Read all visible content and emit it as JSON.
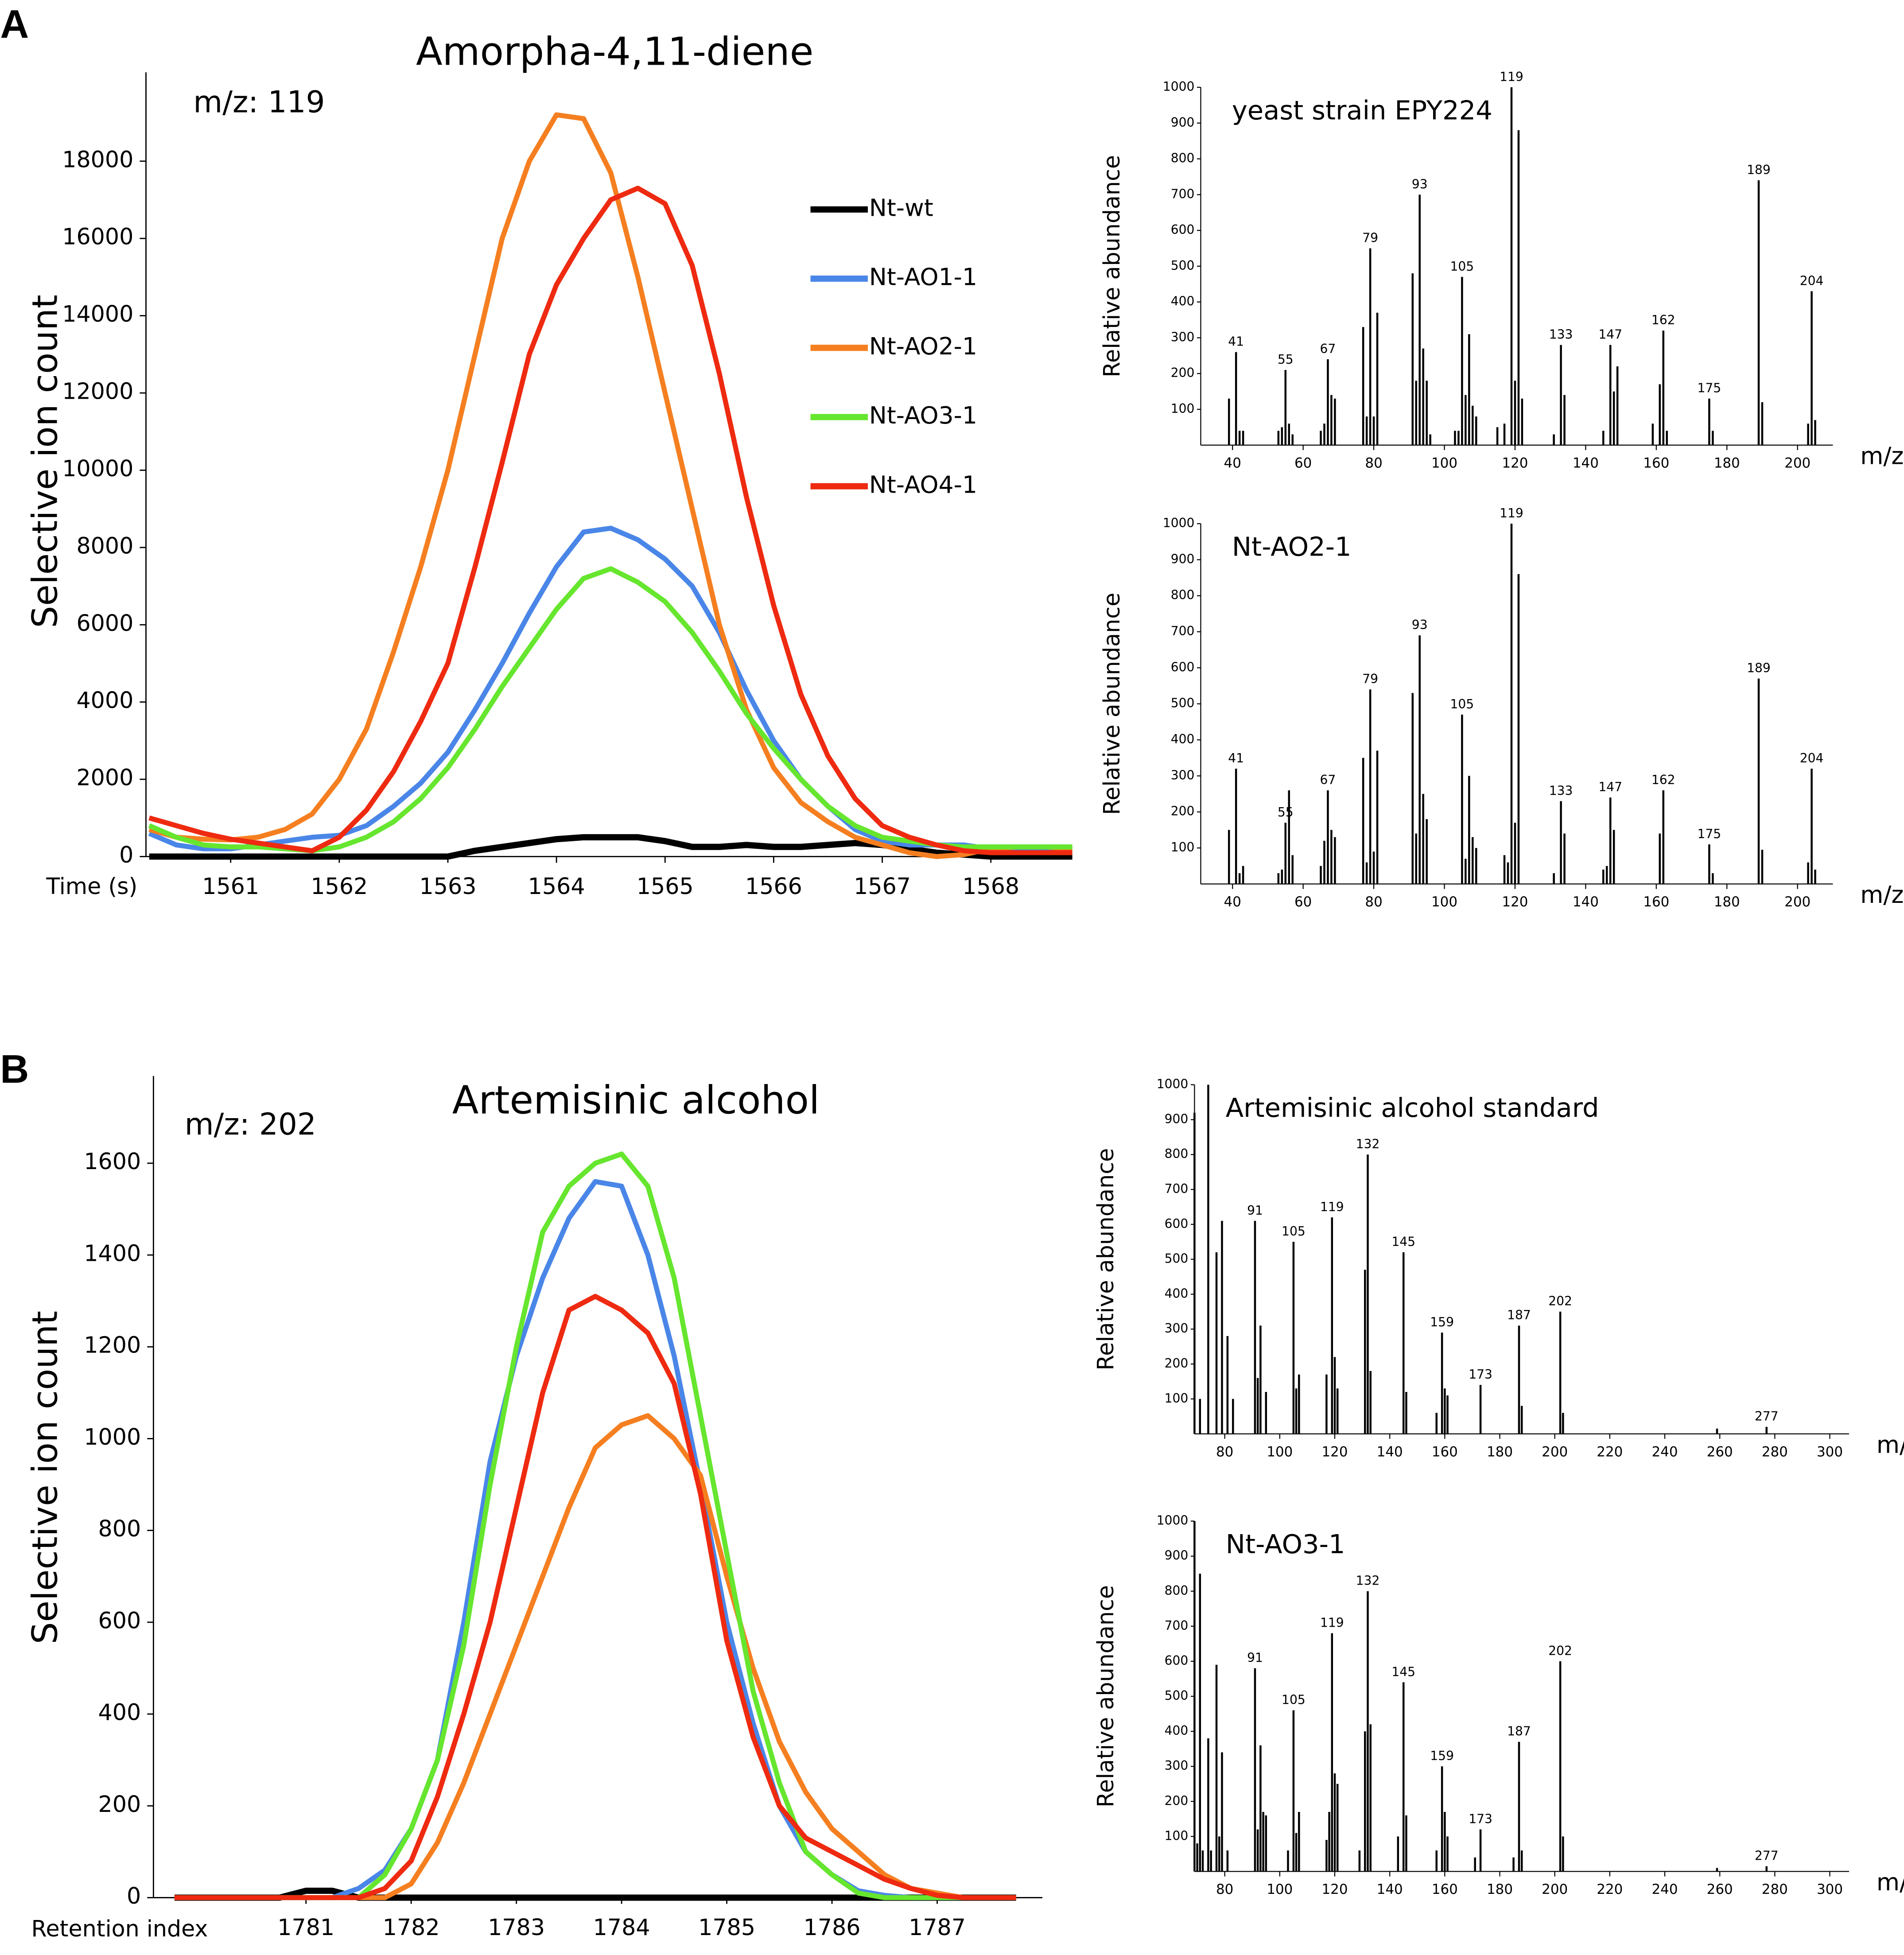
{
  "chart_data": [
    {
      "type": "line",
      "panel": "A",
      "title": "Amorpha-4,11-diene",
      "annotation": "m/z: 119",
      "xlabel": "Time (s)",
      "ylabel": "Selective ion count",
      "x": [
        1560.25,
        1560.5,
        1560.75,
        1561,
        1561.25,
        1561.5,
        1561.75,
        1562,
        1562.25,
        1562.5,
        1562.75,
        1563,
        1563.25,
        1563.5,
        1563.75,
        1564,
        1564.25,
        1564.5,
        1564.75,
        1565,
        1565.25,
        1565.5,
        1565.75,
        1566,
        1566.25,
        1566.5,
        1566.75,
        1567,
        1567.25,
        1567.5,
        1567.75,
        1568,
        1568.25,
        1568.5,
        1568.75
      ],
      "series": [
        {
          "name": "Nt-wt",
          "color": "#000000",
          "values": [
            0,
            0,
            0,
            0,
            0,
            0,
            0,
            0,
            0,
            0,
            0,
            0,
            150,
            250,
            350,
            450,
            500,
            500,
            500,
            400,
            250,
            250,
            300,
            250,
            250,
            300,
            350,
            300,
            200,
            100,
            50,
            0,
            0,
            0,
            0
          ]
        },
        {
          "name": "Nt-AO1-1",
          "color": "#4a86e8",
          "values": [
            600,
            300,
            200,
            200,
            300,
            400,
            500,
            550,
            800,
            1300,
            1900,
            2700,
            3800,
            5000,
            6300,
            7500,
            8400,
            8500,
            8200,
            7700,
            7000,
            5800,
            4300,
            3000,
            2000,
            1300,
            700,
            400,
            300,
            300,
            300,
            200,
            200,
            150,
            150
          ]
        },
        {
          "name": "Nt-AO2-1",
          "color": "#f57f20",
          "values": [
            700,
            500,
            450,
            430,
            500,
            700,
            1100,
            2000,
            3300,
            5300,
            7500,
            10000,
            13000,
            16000,
            18000,
            19200,
            19100,
            17700,
            15000,
            12000,
            9000,
            6000,
            3800,
            2300,
            1400,
            900,
            500,
            300,
            100,
            0,
            50,
            200,
            250,
            250,
            200
          ]
        },
        {
          "name": "Nt-AO3-1",
          "color": "#66e62e",
          "values": [
            800,
            500,
            300,
            250,
            250,
            200,
            150,
            250,
            500,
            900,
            1500,
            2300,
            3300,
            4400,
            5400,
            6400,
            7200,
            7450,
            7100,
            6600,
            5800,
            4800,
            3700,
            2800,
            2000,
            1300,
            800,
            500,
            400,
            300,
            250,
            250,
            250,
            250,
            250
          ]
        },
        {
          "name": "Nt-AO4-1",
          "color": "#ee2a10",
          "values": [
            1000,
            800,
            600,
            450,
            350,
            250,
            150,
            500,
            1200,
            2200,
            3500,
            5000,
            7500,
            10200,
            13000,
            14800,
            16000,
            17000,
            17300,
            16900,
            15300,
            12500,
            9300,
            6500,
            4200,
            2600,
            1500,
            800,
            500,
            300,
            150,
            100,
            100,
            100,
            100
          ]
        }
      ],
      "xlim": [
        1560.22,
        1568.75
      ],
      "ylim": [
        0,
        20300
      ],
      "xticks": [
        1561,
        1562,
        1563,
        1564,
        1565,
        1566,
        1567,
        1568
      ],
      "yticks": [
        0,
        2000,
        4000,
        6000,
        8000,
        10000,
        12000,
        14000,
        16000,
        18000
      ],
      "grid": false,
      "legend": "upper right"
    },
    {
      "type": "bar",
      "title": "yeast strain EPY224",
      "ylabel": "Relative abundance",
      "xlabel": "m/z",
      "color": "#000000",
      "x": [
        39,
        41,
        42,
        43,
        53,
        54,
        55,
        56,
        57,
        65,
        66,
        67,
        68,
        69,
        77,
        78,
        79,
        80,
        81,
        91,
        92,
        93,
        94,
        95,
        96,
        103,
        104,
        105,
        106,
        107,
        108,
        109,
        115,
        117,
        119,
        120,
        121,
        122,
        131,
        133,
        134,
        145,
        147,
        148,
        149,
        159,
        161,
        162,
        163,
        175,
        176,
        189,
        190,
        203,
        204,
        205
      ],
      "values": [
        130,
        260,
        40,
        40,
        40,
        50,
        210,
        60,
        30,
        40,
        60,
        240,
        140,
        130,
        330,
        80,
        550,
        80,
        370,
        480,
        180,
        700,
        270,
        180,
        30,
        40,
        40,
        470,
        140,
        310,
        110,
        80,
        50,
        60,
        1000,
        180,
        880,
        130,
        30,
        280,
        140,
        40,
        280,
        150,
        220,
        60,
        170,
        320,
        40,
        130,
        40,
        740,
        120,
        60,
        430,
        70
      ],
      "peak_labels": [
        41,
        55,
        67,
        79,
        93,
        105,
        119,
        133,
        147,
        162,
        175,
        189,
        204
      ],
      "xlim": [
        31,
        210
      ],
      "ylim": [
        0,
        1000
      ],
      "xticks": [
        40,
        60,
        80,
        100,
        120,
        140,
        160,
        180,
        200
      ],
      "yticks": [
        100,
        200,
        300,
        400,
        500,
        600,
        700,
        800,
        900,
        1000
      ]
    },
    {
      "type": "bar",
      "title": "Nt-AO2-1",
      "ylabel": "Relative abundance",
      "xlabel": "m/z",
      "color": "#000000",
      "x": [
        39,
        41,
        42,
        43,
        53,
        54,
        55,
        56,
        57,
        65,
        66,
        67,
        68,
        69,
        77,
        78,
        79,
        80,
        81,
        91,
        92,
        93,
        94,
        95,
        105,
        106,
        107,
        108,
        109,
        117,
        118,
        119,
        120,
        121,
        131,
        133,
        134,
        145,
        146,
        147,
        148,
        161,
        162,
        175,
        176,
        189,
        190,
        203,
        204,
        205
      ],
      "values": [
        150,
        320,
        30,
        50,
        30,
        40,
        170,
        260,
        80,
        50,
        120,
        260,
        150,
        130,
        350,
        60,
        540,
        90,
        370,
        530,
        140,
        690,
        250,
        180,
        470,
        70,
        300,
        130,
        100,
        80,
        60,
        1000,
        170,
        860,
        30,
        230,
        140,
        40,
        50,
        240,
        150,
        140,
        260,
        110,
        30,
        570,
        95,
        60,
        320,
        40
      ],
      "peak_labels": [
        41,
        55,
        67,
        79,
        93,
        105,
        119,
        133,
        147,
        162,
        175,
        189,
        204
      ],
      "xlim": [
        31,
        210
      ],
      "ylim": [
        0,
        1000
      ],
      "xticks": [
        40,
        60,
        80,
        100,
        120,
        140,
        160,
        180,
        200
      ],
      "yticks": [
        100,
        200,
        300,
        400,
        500,
        600,
        700,
        800,
        900,
        1000
      ]
    },
    {
      "type": "line",
      "panel": "B",
      "title": "Artemisinic alcohol",
      "annotation": "m/z: 202",
      "xlabel": "Retention index",
      "ylabel": "Selective ion count",
      "x": [
        1779.75,
        1780,
        1780.25,
        1780.5,
        1780.75,
        1781,
        1781.25,
        1781.5,
        1781.75,
        1782,
        1782.25,
        1782.5,
        1782.75,
        1783,
        1783.25,
        1783.5,
        1783.75,
        1784,
        1784.25,
        1784.5,
        1784.75,
        1785,
        1785.25,
        1785.5,
        1785.75,
        1786,
        1786.25,
        1786.5,
        1786.75,
        1787,
        1787.25,
        1787.5,
        1787.75
      ],
      "series": [
        {
          "color": "#000000",
          "values": [
            0,
            0,
            0,
            0,
            0,
            15,
            15,
            0,
            0,
            0,
            0,
            0,
            0,
            0,
            0,
            0,
            0,
            0,
            0,
            0,
            0,
            0,
            0,
            0,
            0,
            0,
            0,
            0,
            0,
            0,
            0,
            0,
            0
          ]
        },
        {
          "color": "#4a86e8",
          "values": [
            0,
            0,
            0,
            0,
            0,
            0,
            0,
            20,
            60,
            150,
            300,
            600,
            950,
            1180,
            1350,
            1480,
            1560,
            1550,
            1400,
            1180,
            900,
            600,
            380,
            200,
            100,
            50,
            15,
            5,
            0,
            0,
            0,
            0,
            0
          ]
        },
        {
          "color": "#f57f20",
          "values": [
            0,
            0,
            0,
            0,
            0,
            0,
            0,
            0,
            0,
            30,
            120,
            250,
            400,
            550,
            700,
            850,
            980,
            1030,
            1050,
            1000,
            920,
            700,
            500,
            340,
            230,
            150,
            100,
            50,
            20,
            10,
            0,
            0,
            0
          ]
        },
        {
          "color": "#66e62e",
          "values": [
            0,
            0,
            0,
            0,
            0,
            0,
            0,
            0,
            50,
            150,
            300,
            550,
            900,
            1200,
            1450,
            1550,
            1600,
            1620,
            1550,
            1350,
            1050,
            750,
            450,
            250,
            100,
            50,
            10,
            0,
            0,
            0,
            0,
            0,
            0
          ]
        },
        {
          "color": "#ee2a10",
          "values": [
            0,
            0,
            0,
            0,
            0,
            0,
            0,
            0,
            20,
            80,
            220,
            400,
            600,
            850,
            1100,
            1280,
            1310,
            1280,
            1230,
            1120,
            880,
            560,
            350,
            200,
            130,
            100,
            70,
            40,
            20,
            5,
            0,
            0,
            0
          ]
        }
      ],
      "xlim": [
        1779.55,
        1788.0
      ],
      "ylim": [
        0,
        1790
      ],
      "xticks": [
        1781,
        1782,
        1783,
        1784,
        1785,
        1786,
        1787
      ],
      "yticks": [
        0,
        200,
        400,
        600,
        800,
        1000,
        1200,
        1400,
        1600
      ],
      "grid": false
    },
    {
      "type": "bar",
      "title": "Artemisinic alcohol standard",
      "ylabel": "Relative abundance",
      "xlabel": "m/z",
      "color": "#000000",
      "x": [
        69,
        71,
        74,
        77,
        79,
        81,
        83,
        91,
        92,
        93,
        95,
        105,
        106,
        107,
        117,
        119,
        120,
        121,
        131,
        132,
        133,
        145,
        146,
        157,
        159,
        160,
        161,
        173,
        187,
        188,
        202,
        203,
        259,
        277
      ],
      "values": [
        920,
        100,
        1000,
        520,
        610,
        280,
        100,
        610,
        160,
        310,
        120,
        550,
        130,
        170,
        170,
        620,
        220,
        130,
        470,
        800,
        180,
        520,
        120,
        60,
        290,
        130,
        110,
        140,
        310,
        80,
        350,
        60,
        15,
        20
      ],
      "peak_labels": [
        91,
        105,
        119,
        132,
        145,
        159,
        173,
        187,
        202,
        277
      ],
      "xlim": [
        69,
        307
      ],
      "ylim": [
        0,
        1000
      ],
      "xticks": [
        80,
        100,
        120,
        140,
        160,
        180,
        200,
        220,
        240,
        260,
        280,
        300
      ],
      "yticks": [
        100,
        200,
        300,
        400,
        500,
        600,
        700,
        800,
        900,
        1000
      ]
    },
    {
      "type": "bar",
      "title": "Nt-AO3-1",
      "ylabel": "Relative abundance",
      "xlabel": "m/z",
      "color": "#000000",
      "x": [
        69,
        70,
        71,
        72,
        74,
        75,
        77,
        78,
        79,
        81,
        91,
        92,
        93,
        94,
        95,
        103,
        105,
        106,
        107,
        117,
        118,
        119,
        120,
        121,
        129,
        131,
        132,
        133,
        143,
        145,
        146,
        157,
        159,
        160,
        161,
        171,
        173,
        185,
        187,
        188,
        202,
        203,
        259,
        277
      ],
      "values": [
        1000,
        80,
        850,
        60,
        380,
        60,
        590,
        100,
        340,
        60,
        580,
        120,
        360,
        170,
        160,
        60,
        460,
        110,
        170,
        90,
        170,
        680,
        280,
        250,
        60,
        400,
        800,
        420,
        100,
        540,
        160,
        60,
        300,
        170,
        100,
        40,
        120,
        40,
        370,
        60,
        600,
        100,
        10,
        15
      ],
      "peak_labels": [
        91,
        105,
        119,
        132,
        145,
        159,
        173,
        187,
        202,
        277
      ],
      "xlim": [
        69,
        307
      ],
      "ylim": [
        0,
        1000
      ],
      "xticks": [
        80,
        100,
        120,
        140,
        160,
        180,
        200,
        220,
        240,
        260,
        280,
        300
      ],
      "yticks": [
        100,
        200,
        300,
        400,
        500,
        600,
        700,
        800,
        900,
        1000
      ]
    }
  ]
}
